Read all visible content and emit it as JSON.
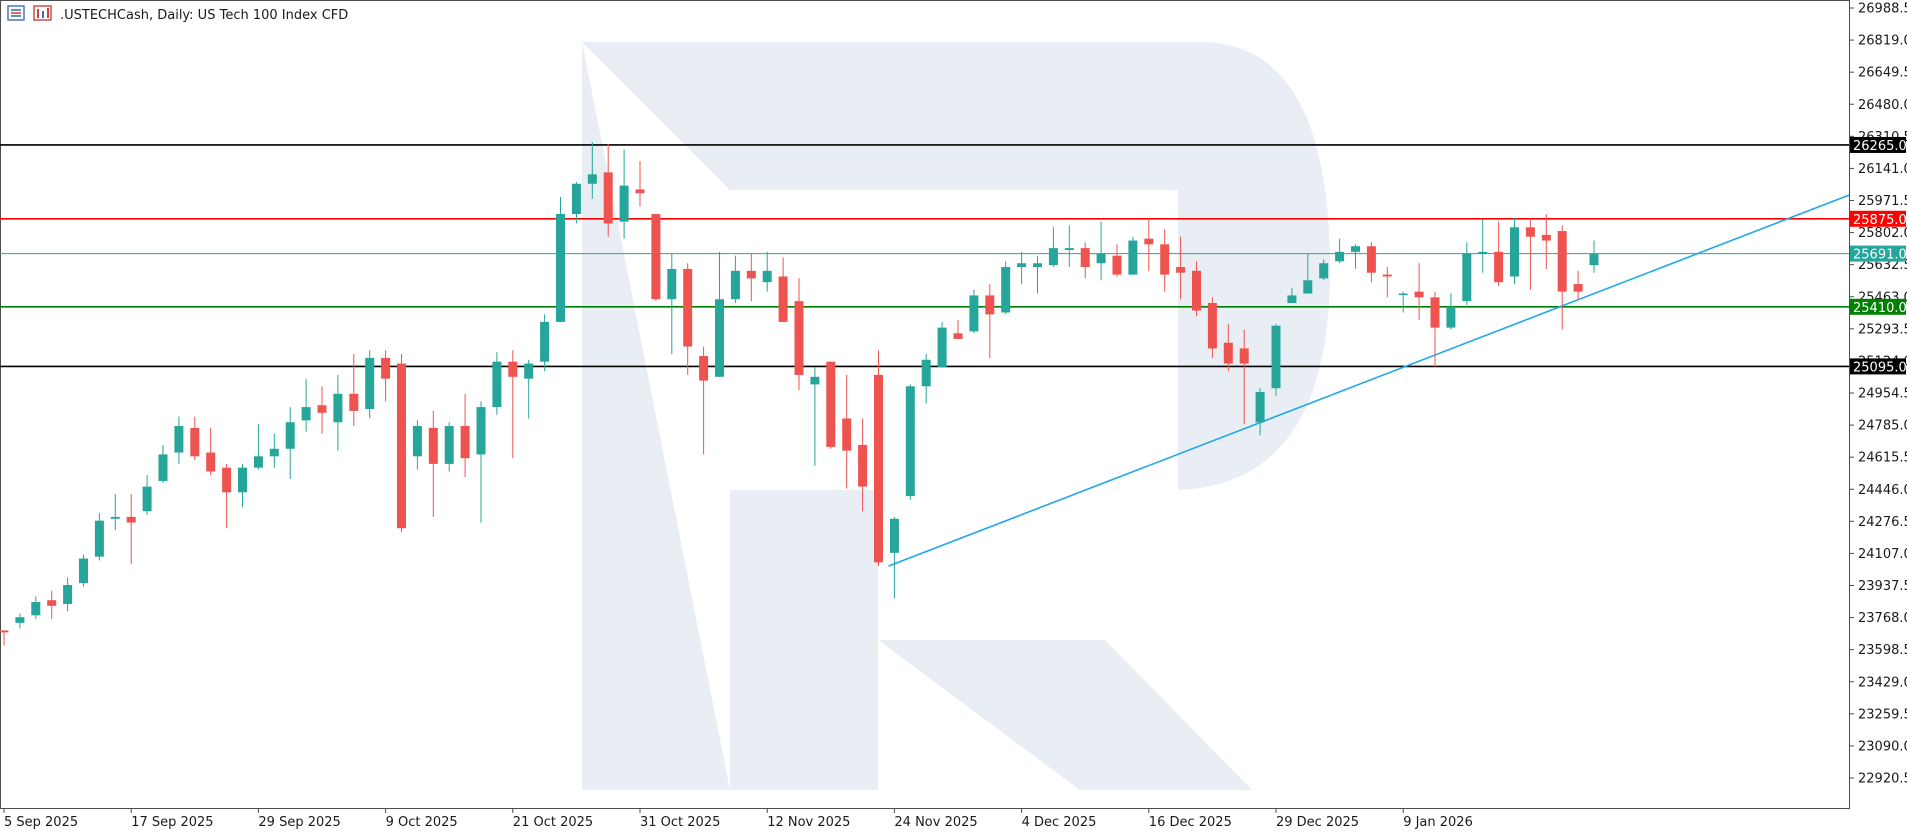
{
  "header": {
    "title": ".USTECHCash, Daily:  US Tech 100 Index CFD",
    "icons": [
      "bar-chart-menu-icon",
      "chart-properties-icon"
    ]
  },
  "colors": {
    "bull": "#26a69a",
    "bear": "#ef5350",
    "resistance": "#ff0000",
    "support": "#008000",
    "level": "#000000",
    "trendline": "#1fa9e8",
    "current_price": "#26a69a",
    "watermark": "#e9edf4"
  },
  "chart_data": {
    "type": "candlestick",
    "title": ".USTECHCash, Daily:  US Tech 100 Index CFD",
    "ylim": [
      22751.0,
      27027.0
    ],
    "y_ticks": [
      "26988.5",
      "26819.0",
      "26649.5",
      "26480.0",
      "26310.5",
      "26141.0",
      "25971.5",
      "25802.0",
      "25632.5",
      "25463.0",
      "25293.5",
      "25124.0",
      "24954.5",
      "24785.0",
      "24615.5",
      "24446.0",
      "24276.5",
      "24107.0",
      "23937.5",
      "23768.0",
      "23598.5",
      "23429.0",
      "23259.5",
      "23090.0",
      "22920.5"
    ],
    "x_ticks": [
      {
        "label": "5 Sep 2025",
        "index": 0
      },
      {
        "label": "17 Sep 2025",
        "index": 8
      },
      {
        "label": "29 Sep 2025",
        "index": 16
      },
      {
        "label": "9 Oct 2025",
        "index": 24
      },
      {
        "label": "21 Oct 2025",
        "index": 32
      },
      {
        "label": "31 Oct 2025",
        "index": 40
      },
      {
        "label": "12 Nov 2025",
        "index": 48
      },
      {
        "label": "24 Nov 2025",
        "index": 56
      },
      {
        "label": "4 Dec 2025",
        "index": 64
      },
      {
        "label": "16 Dec 2025",
        "index": 72
      },
      {
        "label": "29 Dec 2025",
        "index": 80
      },
      {
        "label": "9 Jan 2026",
        "index": 88
      }
    ],
    "candles": [
      [
        23700,
        23720,
        23690,
        23660
      ],
      [
        23740,
        23860,
        23770,
        23690
      ],
      [
        23780,
        23890,
        23850,
        23730
      ],
      [
        23860,
        23920,
        23830,
        23770
      ],
      [
        23840,
        24030,
        23940,
        23800
      ],
      [
        23950,
        24060,
        24080,
        23930
      ],
      [
        24090,
        24310,
        24280,
        24070
      ],
      [
        24290,
        24410,
        24300,
        24230
      ],
      [
        24300,
        24270,
        24270,
        24050
      ],
      [
        24330,
        24500,
        24460,
        24310
      ],
      [
        24490,
        24680,
        24630,
        24480
      ],
      [
        24640,
        24810,
        24780,
        24580
      ],
      [
        24770,
        24800,
        24620,
        24600
      ],
      [
        24640,
        24720,
        24540,
        24520
      ],
      [
        24560,
        24630,
        24430,
        24240
      ],
      [
        24430,
        24500,
        24560,
        24350
      ],
      [
        24560,
        24750,
        24620,
        24550
      ],
      [
        24620,
        24710,
        24660,
        24560
      ],
      [
        24660,
        24890,
        24800,
        24500
      ],
      [
        24810,
        25000,
        24880,
        24750
      ],
      [
        24890,
        24960,
        24850,
        24740
      ],
      [
        24800,
        24970,
        24950,
        24650
      ],
      [
        24950,
        25110,
        24860,
        24780
      ],
      [
        24870,
        25110,
        25140,
        24820
      ],
      [
        25140,
        25160,
        25030,
        24910
      ],
      [
        25110,
        25140,
        24240,
        24220
      ],
      [
        24620,
        24750,
        24780,
        24550
      ],
      [
        24770,
        24860,
        24580,
        24300
      ],
      [
        24580,
        24750,
        24780,
        24540
      ],
      [
        24780,
        24930,
        24610,
        24510
      ],
      [
        24630,
        24900,
        24880,
        24270
      ],
      [
        24880,
        25150,
        25120,
        24840
      ],
      [
        25120,
        25170,
        25040,
        24610
      ],
      [
        25030,
        25100,
        25110,
        24820
      ],
      [
        25120,
        25320,
        25330,
        25070
      ],
      [
        25330,
        25990,
        25900,
        25600
      ],
      [
        25900,
        26060,
        26060,
        25850
      ],
      [
        26060,
        26250,
        26110,
        25980
      ],
      [
        26120,
        26230,
        25850,
        25780
      ],
      [
        25860,
        26160,
        26050,
        25770
      ],
      [
        26030,
        26110,
        26010,
        25940
      ],
      [
        25900,
        25980,
        25450,
        25460
      ],
      [
        25450,
        25660,
        25610,
        25160
      ],
      [
        25610,
        25630,
        25200,
        25050
      ],
      [
        25150,
        25120,
        25020,
        24630
      ],
      [
        25040,
        25690,
        25450,
        25060
      ],
      [
        25450,
        25640,
        25600,
        25430
      ],
      [
        25600,
        25660,
        25560,
        25440
      ],
      [
        25540,
        25670,
        25600,
        25490
      ],
      [
        25570,
        25640,
        25330,
        25460
      ],
      [
        25440,
        25560,
        25050,
        24970
      ],
      [
        25000,
        25080,
        25040,
        24570
      ],
      [
        25120,
        25130,
        24670,
        24660
      ],
      [
        24820,
        25050,
        24650,
        24450
      ],
      [
        24680,
        24810,
        24460,
        24330
      ],
      [
        25050,
        25120,
        24060,
        24040
      ],
      [
        24110,
        24160,
        24290,
        23870
      ],
      [
        24410,
        24980,
        24990,
        24390
      ],
      [
        24990,
        25080,
        25130,
        24900
      ],
      [
        25090,
        25190,
        25300,
        25090
      ],
      [
        25270,
        25330,
        25240,
        25250
      ],
      [
        25280,
        25360,
        25470,
        25270
      ],
      [
        25470,
        25530,
        25370,
        25140
      ],
      [
        25380,
        25440,
        25620,
        25370
      ],
      [
        25620,
        25690,
        25640,
        25530
      ],
      [
        25620,
        25650,
        25640,
        25480
      ],
      [
        25630,
        25680,
        25720,
        25620
      ],
      [
        25710,
        25830,
        25720,
        25620
      ],
      [
        25720,
        25770,
        25620,
        25560
      ],
      [
        25640,
        25860,
        25690,
        25550
      ],
      [
        25680,
        25730,
        25580,
        25570
      ],
      [
        25580,
        25760,
        25760,
        25580
      ],
      [
        25770,
        25880,
        25740,
        25600
      ],
      [
        25740,
        25820,
        25580,
        25490
      ],
      [
        25620,
        25760,
        25590,
        25450
      ],
      [
        25600,
        25640,
        25390,
        25360
      ],
      [
        25430,
        25450,
        25190,
        25140
      ],
      [
        25220,
        25290,
        25110,
        25070
      ],
      [
        25190,
        25290,
        25110,
        24790
      ],
      [
        24800,
        24880,
        24960,
        24730
      ],
      [
        24980,
        25180,
        25310,
        24940
      ],
      [
        25430,
        25510,
        25470,
        25430
      ],
      [
        25480,
        25680,
        25550,
        25490
      ],
      [
        25560,
        25650,
        25640,
        25550
      ],
      [
        25650,
        25770,
        25700,
        25640
      ],
      [
        25700,
        25720,
        25730,
        25610
      ],
      [
        25730,
        25740,
        25590,
        25540
      ],
      [
        25580,
        25620,
        25570,
        25460
      ],
      [
        25480,
        25490,
        25480,
        25380
      ],
      [
        25490,
        25640,
        25460,
        25340
      ],
      [
        25460,
        25490,
        25300,
        25090
      ],
      [
        25300,
        25480,
        25410,
        25290
      ],
      [
        25440,
        25750,
        25690,
        25420
      ],
      [
        25690,
        25870,
        25700,
        25590
      ],
      [
        25700,
        25860,
        25540,
        25520
      ],
      [
        25570,
        25880,
        25830,
        25530
      ],
      [
        25830,
        25870,
        25780,
        25500
      ],
      [
        25790,
        25890,
        25760,
        25610
      ],
      [
        25810,
        25830,
        25490,
        25290
      ],
      [
        25530,
        25600,
        25490,
        25450
      ],
      [
        25630,
        25700,
        25690,
        25590
      ]
    ],
    "candle_comment": "each candle = [open, high-proxy unused, close, low]; highs/lows also listed in wicks",
    "wicks": [
      [
        23620,
        23640
      ],
      [
        23710,
        23790
      ],
      [
        23760,
        23880
      ],
      [
        23760,
        23910
      ],
      [
        23800,
        23980
      ],
      [
        23930,
        24100
      ],
      [
        24070,
        24320
      ],
      [
        24230,
        24420
      ],
      [
        24050,
        24420
      ],
      [
        24310,
        24520
      ],
      [
        24480,
        24680
      ],
      [
        24580,
        24830
      ],
      [
        24600,
        24830
      ],
      [
        24520,
        24770
      ],
      [
        24240,
        24580
      ],
      [
        24350,
        24580
      ],
      [
        24550,
        24790
      ],
      [
        24560,
        24740
      ],
      [
        24500,
        24880
      ],
      [
        24750,
        25030
      ],
      [
        24740,
        24990
      ],
      [
        24650,
        25050
      ],
      [
        24780,
        25160
      ],
      [
        24820,
        25180
      ],
      [
        24910,
        25180
      ],
      [
        24220,
        25160
      ],
      [
        24550,
        24810
      ],
      [
        24300,
        24860
      ],
      [
        24540,
        24800
      ],
      [
        24510,
        24950
      ],
      [
        24270,
        24910
      ],
      [
        24840,
        25170
      ],
      [
        24610,
        25180
      ],
      [
        24820,
        25130
      ],
      [
        25070,
        25370
      ],
      [
        25600,
        25990
      ],
      [
        25850,
        26070
      ],
      [
        25980,
        26280
      ],
      [
        25780,
        26270
      ],
      [
        25770,
        26240
      ],
      [
        25940,
        26180
      ],
      [
        25440,
        25900
      ],
      [
        25160,
        25690
      ],
      [
        25050,
        25640
      ],
      [
        24630,
        25200
      ],
      [
        25060,
        25700
      ],
      [
        25430,
        25680
      ],
      [
        25440,
        25690
      ],
      [
        25490,
        25700
      ],
      [
        25460,
        25670
      ],
      [
        24970,
        25560
      ],
      [
        24570,
        25090
      ],
      [
        24660,
        25120
      ],
      [
        24450,
        25050
      ],
      [
        24330,
        24820
      ],
      [
        24040,
        25180
      ],
      [
        23870,
        24300
      ],
      [
        24390,
        25000
      ],
      [
        24900,
        25160
      ],
      [
        25090,
        25330
      ],
      [
        25250,
        25340
      ],
      [
        25270,
        25500
      ],
      [
        25140,
        25530
      ],
      [
        25370,
        25650
      ],
      [
        25530,
        25700
      ],
      [
        25480,
        25680
      ],
      [
        25620,
        25830
      ],
      [
        25620,
        25840
      ],
      [
        25560,
        25750
      ],
      [
        25550,
        25860
      ],
      [
        25570,
        25740
      ],
      [
        25580,
        25780
      ],
      [
        25600,
        25880
      ],
      [
        25490,
        25820
      ],
      [
        25450,
        25780
      ],
      [
        25360,
        25650
      ],
      [
        25140,
        25460
      ],
      [
        25070,
        25320
      ],
      [
        24790,
        25290
      ],
      [
        24730,
        24980
      ],
      [
        24940,
        25320
      ],
      [
        25430,
        25510
      ],
      [
        25490,
        25690
      ],
      [
        25550,
        25660
      ],
      [
        25640,
        25770
      ],
      [
        25610,
        25740
      ],
      [
        25540,
        25750
      ],
      [
        25460,
        25620
      ],
      [
        25380,
        25490
      ],
      [
        25340,
        25640
      ],
      [
        25090,
        25490
      ],
      [
        25290,
        25480
      ],
      [
        25420,
        25750
      ],
      [
        25590,
        25870
      ],
      [
        25520,
        25860
      ],
      [
        25530,
        25880
      ],
      [
        25500,
        25880
      ],
      [
        25610,
        25900
      ],
      [
        25290,
        25840
      ],
      [
        25450,
        25600
      ],
      [
        25590,
        25760
      ]
    ],
    "horizontal_levels": [
      {
        "value": 26265.0,
        "label": "26265.0",
        "color": "#000000",
        "role": "level-top"
      },
      {
        "value": 25875.0,
        "label": "25875.0",
        "color": "#ff0000",
        "role": "resistance"
      },
      {
        "value": 25691.0,
        "label": "25691.0",
        "color": "#26a69a",
        "role": "current-price"
      },
      {
        "value": 25410.0,
        "label": "25410.0",
        "color": "#008000",
        "role": "support"
      },
      {
        "value": 25095.0,
        "label": "25095.0",
        "color": "#000000",
        "role": "level-bottom"
      }
    ],
    "trendline": {
      "from": {
        "index": 55,
        "value": 24040
      },
      "to_value_at_edge": 26000
    },
    "grid": false,
    "legend": "none"
  }
}
